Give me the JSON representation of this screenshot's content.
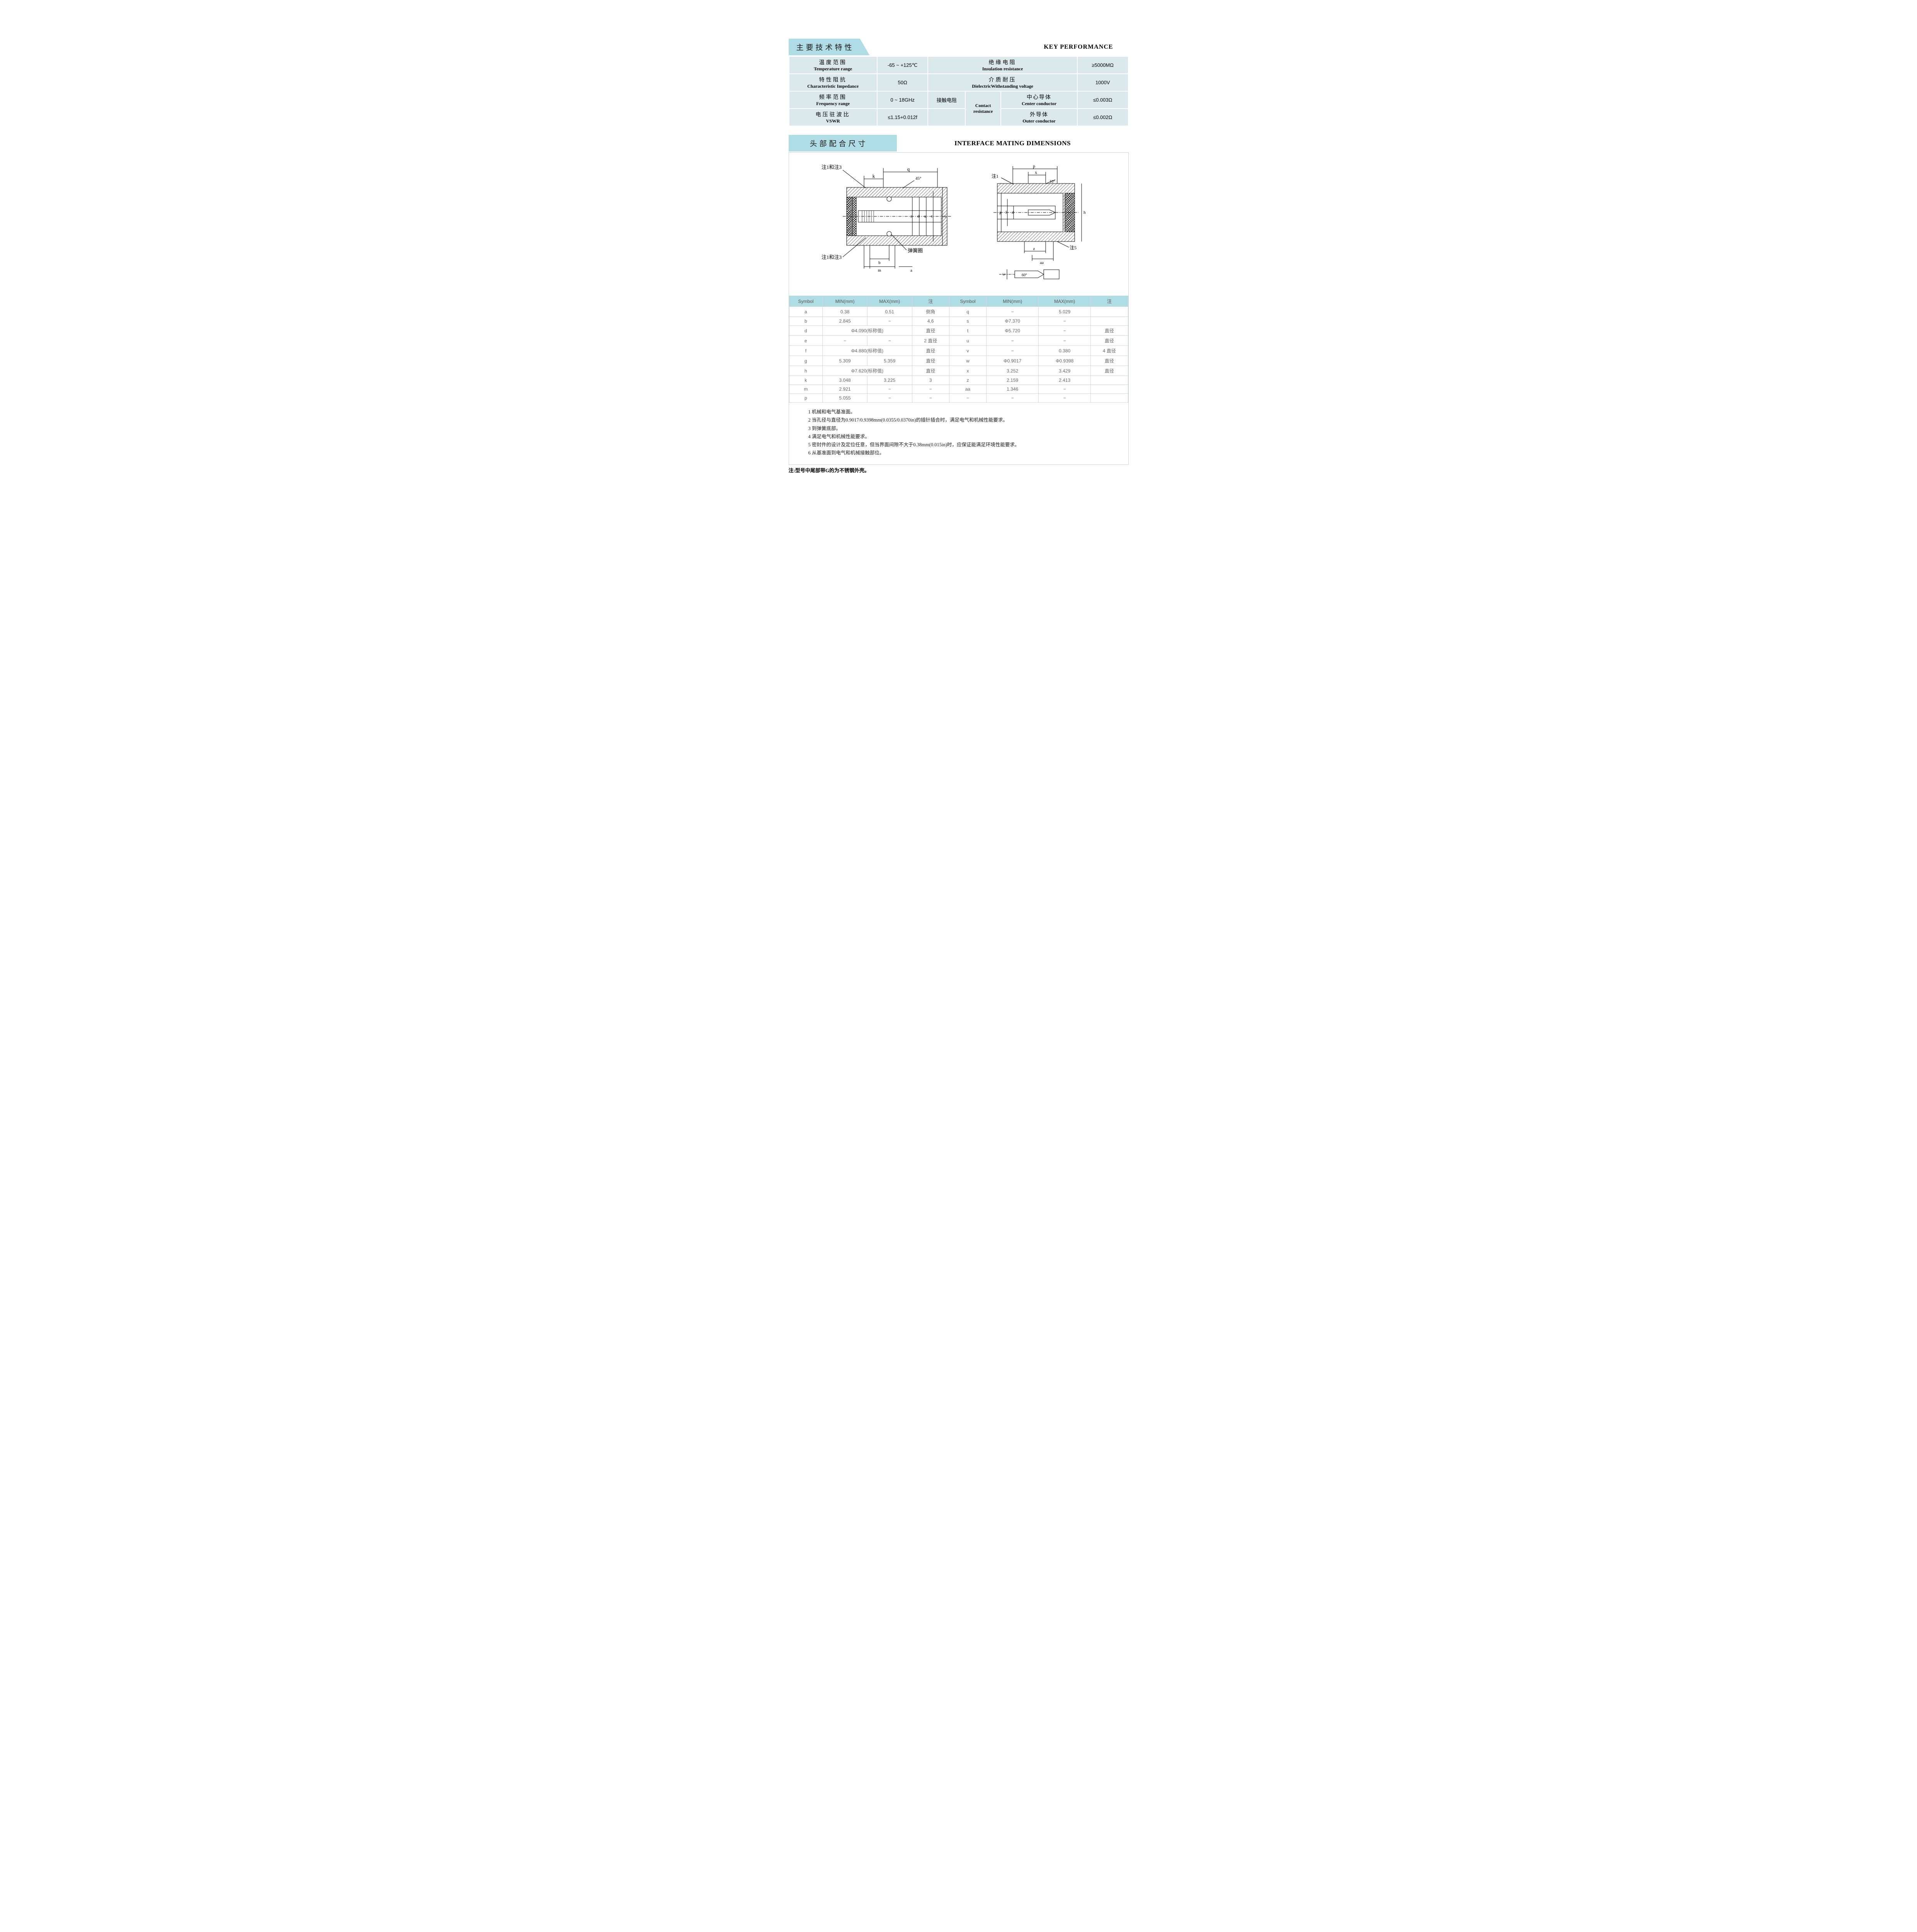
{
  "colors": {
    "tab_bg": "#b0dce6",
    "cell_bg": "#dbe9ed",
    "border": "#ffffff",
    "box_border": "#c2d6db",
    "dim_header_bg": "#b0dce6",
    "text": "#1a1a1a",
    "muted_text": "#666666"
  },
  "section1": {
    "tab_cn": "主要技术特性",
    "key_en": "KEY  PERFORMANCE",
    "rows": [
      {
        "label_cn": "温度范围",
        "label_en": "Temperature range",
        "value": "-65 ~ +125℃",
        "label2_cn": "绝缘电阻",
        "label2_en": "Insulation resistance",
        "value2": "≥5000MΩ"
      },
      {
        "label_cn": "特性阻抗",
        "label_en": "Characteristic Impedance",
        "value": "50Ω",
        "label2_cn": "介质耐压",
        "label2_en": "DielectricWithstanding voltage",
        "value2": "1000V"
      },
      {
        "label_cn": "频率范围",
        "label_en": "Frequency   range",
        "value": "0 ~ 18GHz",
        "contact_cn": "接触电阻",
        "contact_en": "Contact resistance",
        "center_cn": "中心导体",
        "center_en": "Center conductor",
        "center_val": "≤0.003Ω",
        "outer_cn": "外导体",
        "outer_en": "Outer conductor",
        "outer_val": "≤0.002Ω"
      },
      {
        "label_cn": "电压驻波比",
        "label_en": "VSWR",
        "value": "≤1.15+0.012f"
      }
    ]
  },
  "section2": {
    "tab_cn": "头部配合尺寸",
    "title_en": "INTERFACE MATING DIMENSIONS"
  },
  "diagram": {
    "labels": {
      "note1_3_left_top": "注1和注3",
      "note1_3_left_bot": "注1和注3",
      "note1_right": "注1",
      "note5_right": "注5",
      "spring": "弹簧圈",
      "angle45": "45°",
      "angle10": "10°",
      "angle60": "60°",
      "dims_left": [
        "q",
        "k",
        "e",
        "d",
        "u",
        "t",
        "s",
        "b",
        "m",
        "a"
      ],
      "dims_right": [
        "p",
        "x",
        "g",
        "f",
        "d",
        "h",
        "z",
        "aa",
        "w"
      ]
    }
  },
  "dimtable": {
    "headers": [
      "Symbol",
      "MIN(mm)",
      "MAX(mm)",
      "注",
      "Symbol",
      "MIN(mm)",
      "MAX(mm)",
      "注"
    ],
    "rows": [
      [
        "a",
        "0.38",
        "0.51",
        "倒角",
        "q",
        "−",
        "5.029",
        ""
      ],
      [
        "b",
        "2.845",
        "−",
        "4,6",
        "s",
        "Φ7.370",
        "−",
        ""
      ],
      [
        "d",
        {
          "span": 2,
          "text": "Φ4.090(标称值)"
        },
        "直径",
        "t",
        "Φ5.720",
        "−",
        "直径"
      ],
      [
        "e",
        "−",
        "−",
        "2 直径",
        "u",
        "−",
        "−",
        "直径"
      ],
      [
        "f",
        {
          "span": 2,
          "text": "Φ4.880(标称值)"
        },
        "直径",
        "v",
        "−",
        "0.380",
        "4 直径"
      ],
      [
        "g",
        "5.309",
        "5.359",
        "直径",
        "w",
        "Φ0.9017",
        "Φ0.9398",
        "直径"
      ],
      [
        "h",
        {
          "span": 2,
          "text": "Φ7.620(标称值)"
        },
        "直径",
        "x",
        "3.252",
        "3.429",
        "直径"
      ],
      [
        "k",
        "3.048",
        "3.225",
        "3",
        "z",
        "2.159",
        "2.413",
        ""
      ],
      [
        "m",
        "2.921",
        "−",
        "−",
        "aa",
        "1.346",
        "−",
        ""
      ],
      [
        "p",
        "5.055",
        "−",
        "−",
        "−",
        "−",
        "−",
        ""
      ]
    ]
  },
  "notes": [
    "1 机械和电气基准面。",
    "2 当孔径与直径为0.9017/0.9398mm(0.0355/0.0370in)的插针插合时，满足电气和机械性能要求。",
    "3 到弹簧底部。",
    "4 满足电气和机械性能要求。",
    "5 密封件的设计及定位任意，但当界面间隙不大于0.38mm(0.015in)时，应保证能满足环境性能要求。",
    "6 从基准面到电气和机械接触部位。"
  ],
  "bottom_note": "注:型号中尾部带G的为不锈钢外壳。"
}
